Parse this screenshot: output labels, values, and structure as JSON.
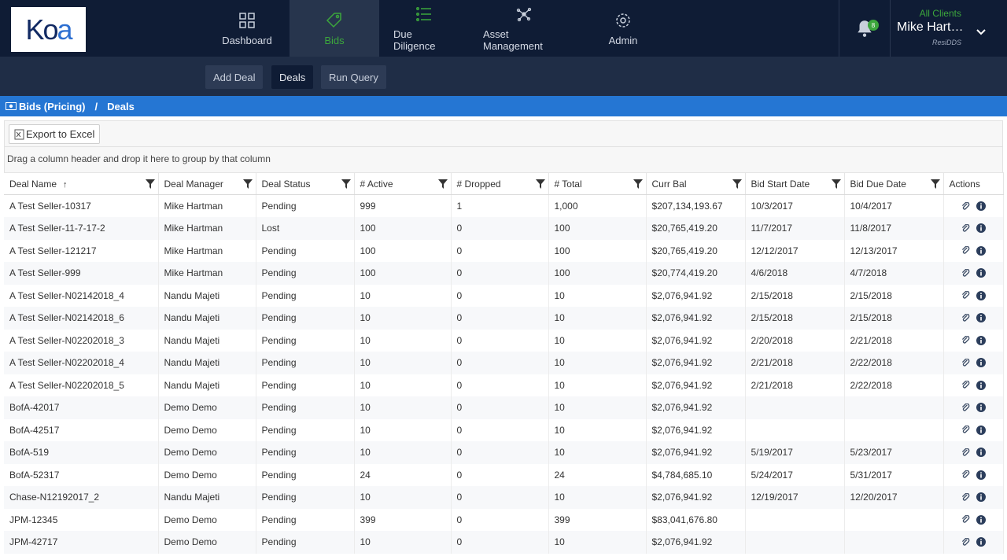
{
  "logo": {
    "text_main": "Ko",
    "text_accent": "a"
  },
  "nav": [
    {
      "label": "Dashboard",
      "icon": "dashboard-icon",
      "active": false
    },
    {
      "label": "Bids",
      "icon": "tag-icon",
      "active": true
    },
    {
      "label": "Due Diligence",
      "icon": "list-icon",
      "active": false
    },
    {
      "label": "Asset Management",
      "icon": "network-icon",
      "active": false
    },
    {
      "label": "Admin",
      "icon": "gear-icon",
      "active": false
    }
  ],
  "notifications": {
    "count": "8",
    "icon": "bell-icon"
  },
  "user": {
    "client": "All Clients",
    "name": "Mike Hart…",
    "org": "ResiDDS"
  },
  "subnav": {
    "add_deal": "Add Deal",
    "deals": "Deals",
    "run_query": "Run Query"
  },
  "breadcrumb": {
    "root": "Bids (Pricing)",
    "sep": "/",
    "current": "Deals"
  },
  "toolbar": {
    "export_label": "Export to Excel"
  },
  "group_panel": {
    "hint": "Drag a column header and drop it here to group by that column"
  },
  "columns": {
    "deal_name": "Deal Name",
    "deal_manager": "Deal Manager",
    "deal_status": "Deal Status",
    "active": "# Active",
    "dropped": "# Dropped",
    "total": "# Total",
    "curr_bal": "Curr Bal",
    "bid_start": "Bid Start Date",
    "bid_due": "Bid Due Date",
    "actions": "Actions"
  },
  "rows": [
    [
      "A Test Seller-10317",
      "Mike Hartman",
      "Pending",
      "999",
      "1",
      "1,000",
      "$207,134,193.67",
      "10/3/2017",
      "10/4/2017"
    ],
    [
      "A Test Seller-11-7-17-2",
      "Mike Hartman",
      "Lost",
      "100",
      "0",
      "100",
      "$20,765,419.20",
      "11/7/2017",
      "11/8/2017"
    ],
    [
      "A Test Seller-121217",
      "Mike Hartman",
      "Pending",
      "100",
      "0",
      "100",
      "$20,765,419.20",
      "12/12/2017",
      "12/13/2017"
    ],
    [
      "A Test Seller-999",
      "Mike Hartman",
      "Pending",
      "100",
      "0",
      "100",
      "$20,774,419.20",
      "4/6/2018",
      "4/7/2018"
    ],
    [
      "A Test Seller-N02142018_4",
      "Nandu Majeti",
      "Pending",
      "10",
      "0",
      "10",
      "$2,076,941.92",
      "2/15/2018",
      "2/15/2018"
    ],
    [
      "A Test Seller-N02142018_6",
      "Nandu Majeti",
      "Pending",
      "10",
      "0",
      "10",
      "$2,076,941.92",
      "2/15/2018",
      "2/15/2018"
    ],
    [
      "A Test Seller-N02202018_3",
      "Nandu Majeti",
      "Pending",
      "10",
      "0",
      "10",
      "$2,076,941.92",
      "2/20/2018",
      "2/21/2018"
    ],
    [
      "A Test Seller-N02202018_4",
      "Nandu Majeti",
      "Pending",
      "10",
      "0",
      "10",
      "$2,076,941.92",
      "2/21/2018",
      "2/22/2018"
    ],
    [
      "A Test Seller-N02202018_5",
      "Nandu Majeti",
      "Pending",
      "10",
      "0",
      "10",
      "$2,076,941.92",
      "2/21/2018",
      "2/22/2018"
    ],
    [
      "BofA-42017",
      "Demo Demo",
      "Pending",
      "10",
      "0",
      "10",
      "$2,076,941.92",
      "",
      ""
    ],
    [
      "BofA-42517",
      "Demo Demo",
      "Pending",
      "10",
      "0",
      "10",
      "$2,076,941.92",
      "",
      ""
    ],
    [
      "BofA-519",
      "Demo Demo",
      "Pending",
      "10",
      "0",
      "10",
      "$2,076,941.92",
      "5/19/2017",
      "5/23/2017"
    ],
    [
      "BofA-52317",
      "Demo Demo",
      "Pending",
      "24",
      "0",
      "24",
      "$4,784,685.10",
      "5/24/2017",
      "5/31/2017"
    ],
    [
      "Chase-N12192017_2",
      "Nandu Majeti",
      "Pending",
      "10",
      "0",
      "10",
      "$2,076,941.92",
      "12/19/2017",
      "12/20/2017"
    ],
    [
      "JPM-12345",
      "Demo Demo",
      "Pending",
      "399",
      "0",
      "399",
      "$83,041,676.80",
      "",
      ""
    ],
    [
      "JPM-42717",
      "Demo Demo",
      "Pending",
      "10",
      "0",
      "10",
      "$2,076,941.92",
      "",
      ""
    ]
  ],
  "colors": {
    "topbar": "#0f1c35",
    "accent_green": "#3ca63c",
    "breadcrumb_blue": "#2576d3",
    "link": "#1f58a8"
  }
}
